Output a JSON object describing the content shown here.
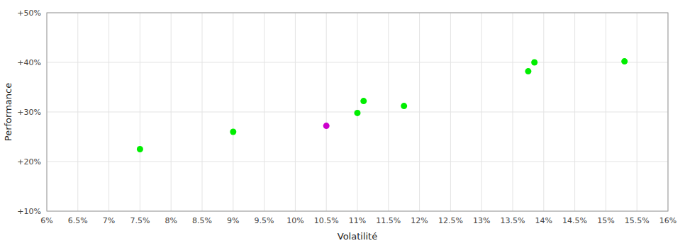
{
  "chart_data": {
    "type": "scatter",
    "xlabel": "Volatilité",
    "ylabel": "Performance",
    "x": [
      7.5,
      9.0,
      10.5,
      11.0,
      11.1,
      11.75,
      13.75,
      13.85,
      15.3
    ],
    "values": [
      22.5,
      26.0,
      27.2,
      29.8,
      32.2,
      31.2,
      38.2,
      40.0,
      40.2
    ],
    "colors": [
      "#00ee00",
      "#00ee00",
      "#cc00cc",
      "#00ee00",
      "#00ee00",
      "#00ee00",
      "#00ee00",
      "#00ee00",
      "#00ee00"
    ],
    "xlim": [
      6.0,
      16.0
    ],
    "ylim": [
      10.0,
      50.0
    ],
    "xticks": [
      {
        "value": 6.0,
        "label": "6%"
      },
      {
        "value": 6.5,
        "label": "6.5%"
      },
      {
        "value": 7.0,
        "label": "7%"
      },
      {
        "value": 7.5,
        "label": "7.5%"
      },
      {
        "value": 8.0,
        "label": "8%"
      },
      {
        "value": 8.5,
        "label": "8.5%"
      },
      {
        "value": 9.0,
        "label": "9%"
      },
      {
        "value": 9.5,
        "label": "9.5%"
      },
      {
        "value": 10.0,
        "label": "10%"
      },
      {
        "value": 10.5,
        "label": "10.5%"
      },
      {
        "value": 11.0,
        "label": "11%"
      },
      {
        "value": 11.5,
        "label": "11.5%"
      },
      {
        "value": 12.0,
        "label": "12%"
      },
      {
        "value": 12.5,
        "label": "12.5%"
      },
      {
        "value": 13.0,
        "label": "13%"
      },
      {
        "value": 13.5,
        "label": "13.5%"
      },
      {
        "value": 14.0,
        "label": "14%"
      },
      {
        "value": 14.5,
        "label": "14.5%"
      },
      {
        "value": 15.0,
        "label": "15%"
      },
      {
        "value": 15.5,
        "label": "15.5%"
      },
      {
        "value": 16.0,
        "label": "16%"
      }
    ],
    "yticks": [
      {
        "value": 10,
        "label": "+10%"
      },
      {
        "value": 20,
        "label": "+20%"
      },
      {
        "value": 30,
        "label": "+30%"
      },
      {
        "value": 40,
        "label": "+40%"
      },
      {
        "value": 50,
        "label": "+50%"
      }
    ],
    "grid": true
  }
}
